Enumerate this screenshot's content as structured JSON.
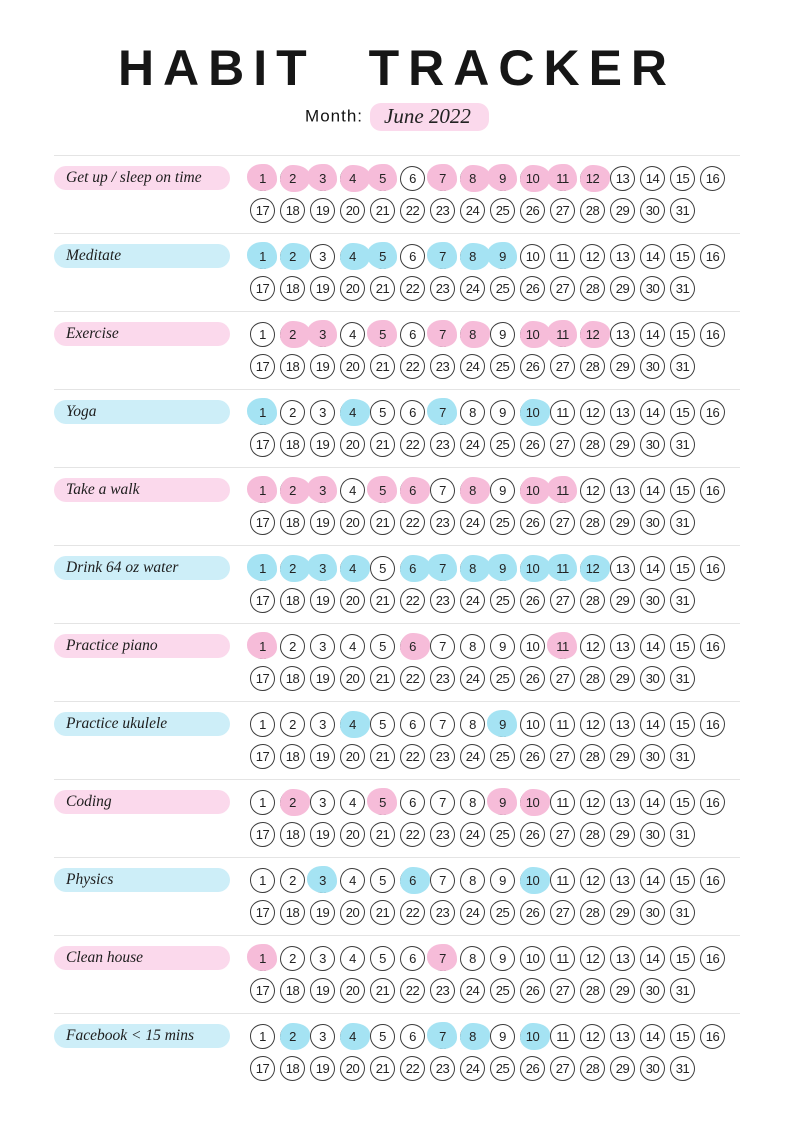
{
  "page": {
    "title": "HABIT TRACKER",
    "month_label": "Month:",
    "month_value": "June 2022"
  },
  "colors": {
    "pink_label": "#fbd9ec",
    "blue_label": "#cdeef8",
    "pink_mark": "#f6bcd9",
    "blue_mark": "#a5e3f3"
  },
  "calendar": {
    "row1_days": [
      1,
      2,
      3,
      4,
      5,
      6,
      7,
      8,
      9,
      10,
      11,
      12,
      13,
      14,
      15,
      16
    ],
    "row2_days": [
      17,
      18,
      19,
      20,
      21,
      22,
      23,
      24,
      25,
      26,
      27,
      28,
      29,
      30,
      31
    ]
  },
  "habits": [
    {
      "label": "Get up / sleep on time",
      "color": "pink",
      "marked_days": [
        1,
        2,
        3,
        4,
        5,
        7,
        8,
        9,
        10,
        11,
        12
      ]
    },
    {
      "label": "Meditate",
      "color": "blue",
      "marked_days": [
        1,
        2,
        4,
        5,
        7,
        8,
        9
      ]
    },
    {
      "label": "Exercise",
      "color": "pink",
      "marked_days": [
        2,
        3,
        5,
        7,
        8,
        10,
        11,
        12
      ]
    },
    {
      "label": "Yoga",
      "color": "blue",
      "marked_days": [
        1,
        4,
        7,
        10
      ]
    },
    {
      "label": "Take a walk",
      "color": "pink",
      "marked_days": [
        1,
        2,
        3,
        5,
        6,
        8,
        10,
        11
      ]
    },
    {
      "label": "Drink 64 oz water",
      "color": "blue",
      "marked_days": [
        1,
        2,
        3,
        4,
        6,
        7,
        8,
        9,
        10,
        11,
        12
      ]
    },
    {
      "label": "Practice piano",
      "color": "pink",
      "marked_days": [
        1,
        6,
        11
      ]
    },
    {
      "label": "Practice ukulele",
      "color": "blue",
      "marked_days": [
        4,
        9
      ]
    },
    {
      "label": "Coding",
      "color": "pink",
      "marked_days": [
        2,
        5,
        9,
        10
      ]
    },
    {
      "label": "Physics",
      "color": "blue",
      "marked_days": [
        3,
        6,
        10
      ]
    },
    {
      "label": "Clean house",
      "color": "pink",
      "marked_days": [
        1,
        7
      ]
    },
    {
      "label": "Facebook < 15 mins",
      "color": "blue",
      "marked_days": [
        2,
        4,
        7,
        8,
        10
      ]
    }
  ]
}
